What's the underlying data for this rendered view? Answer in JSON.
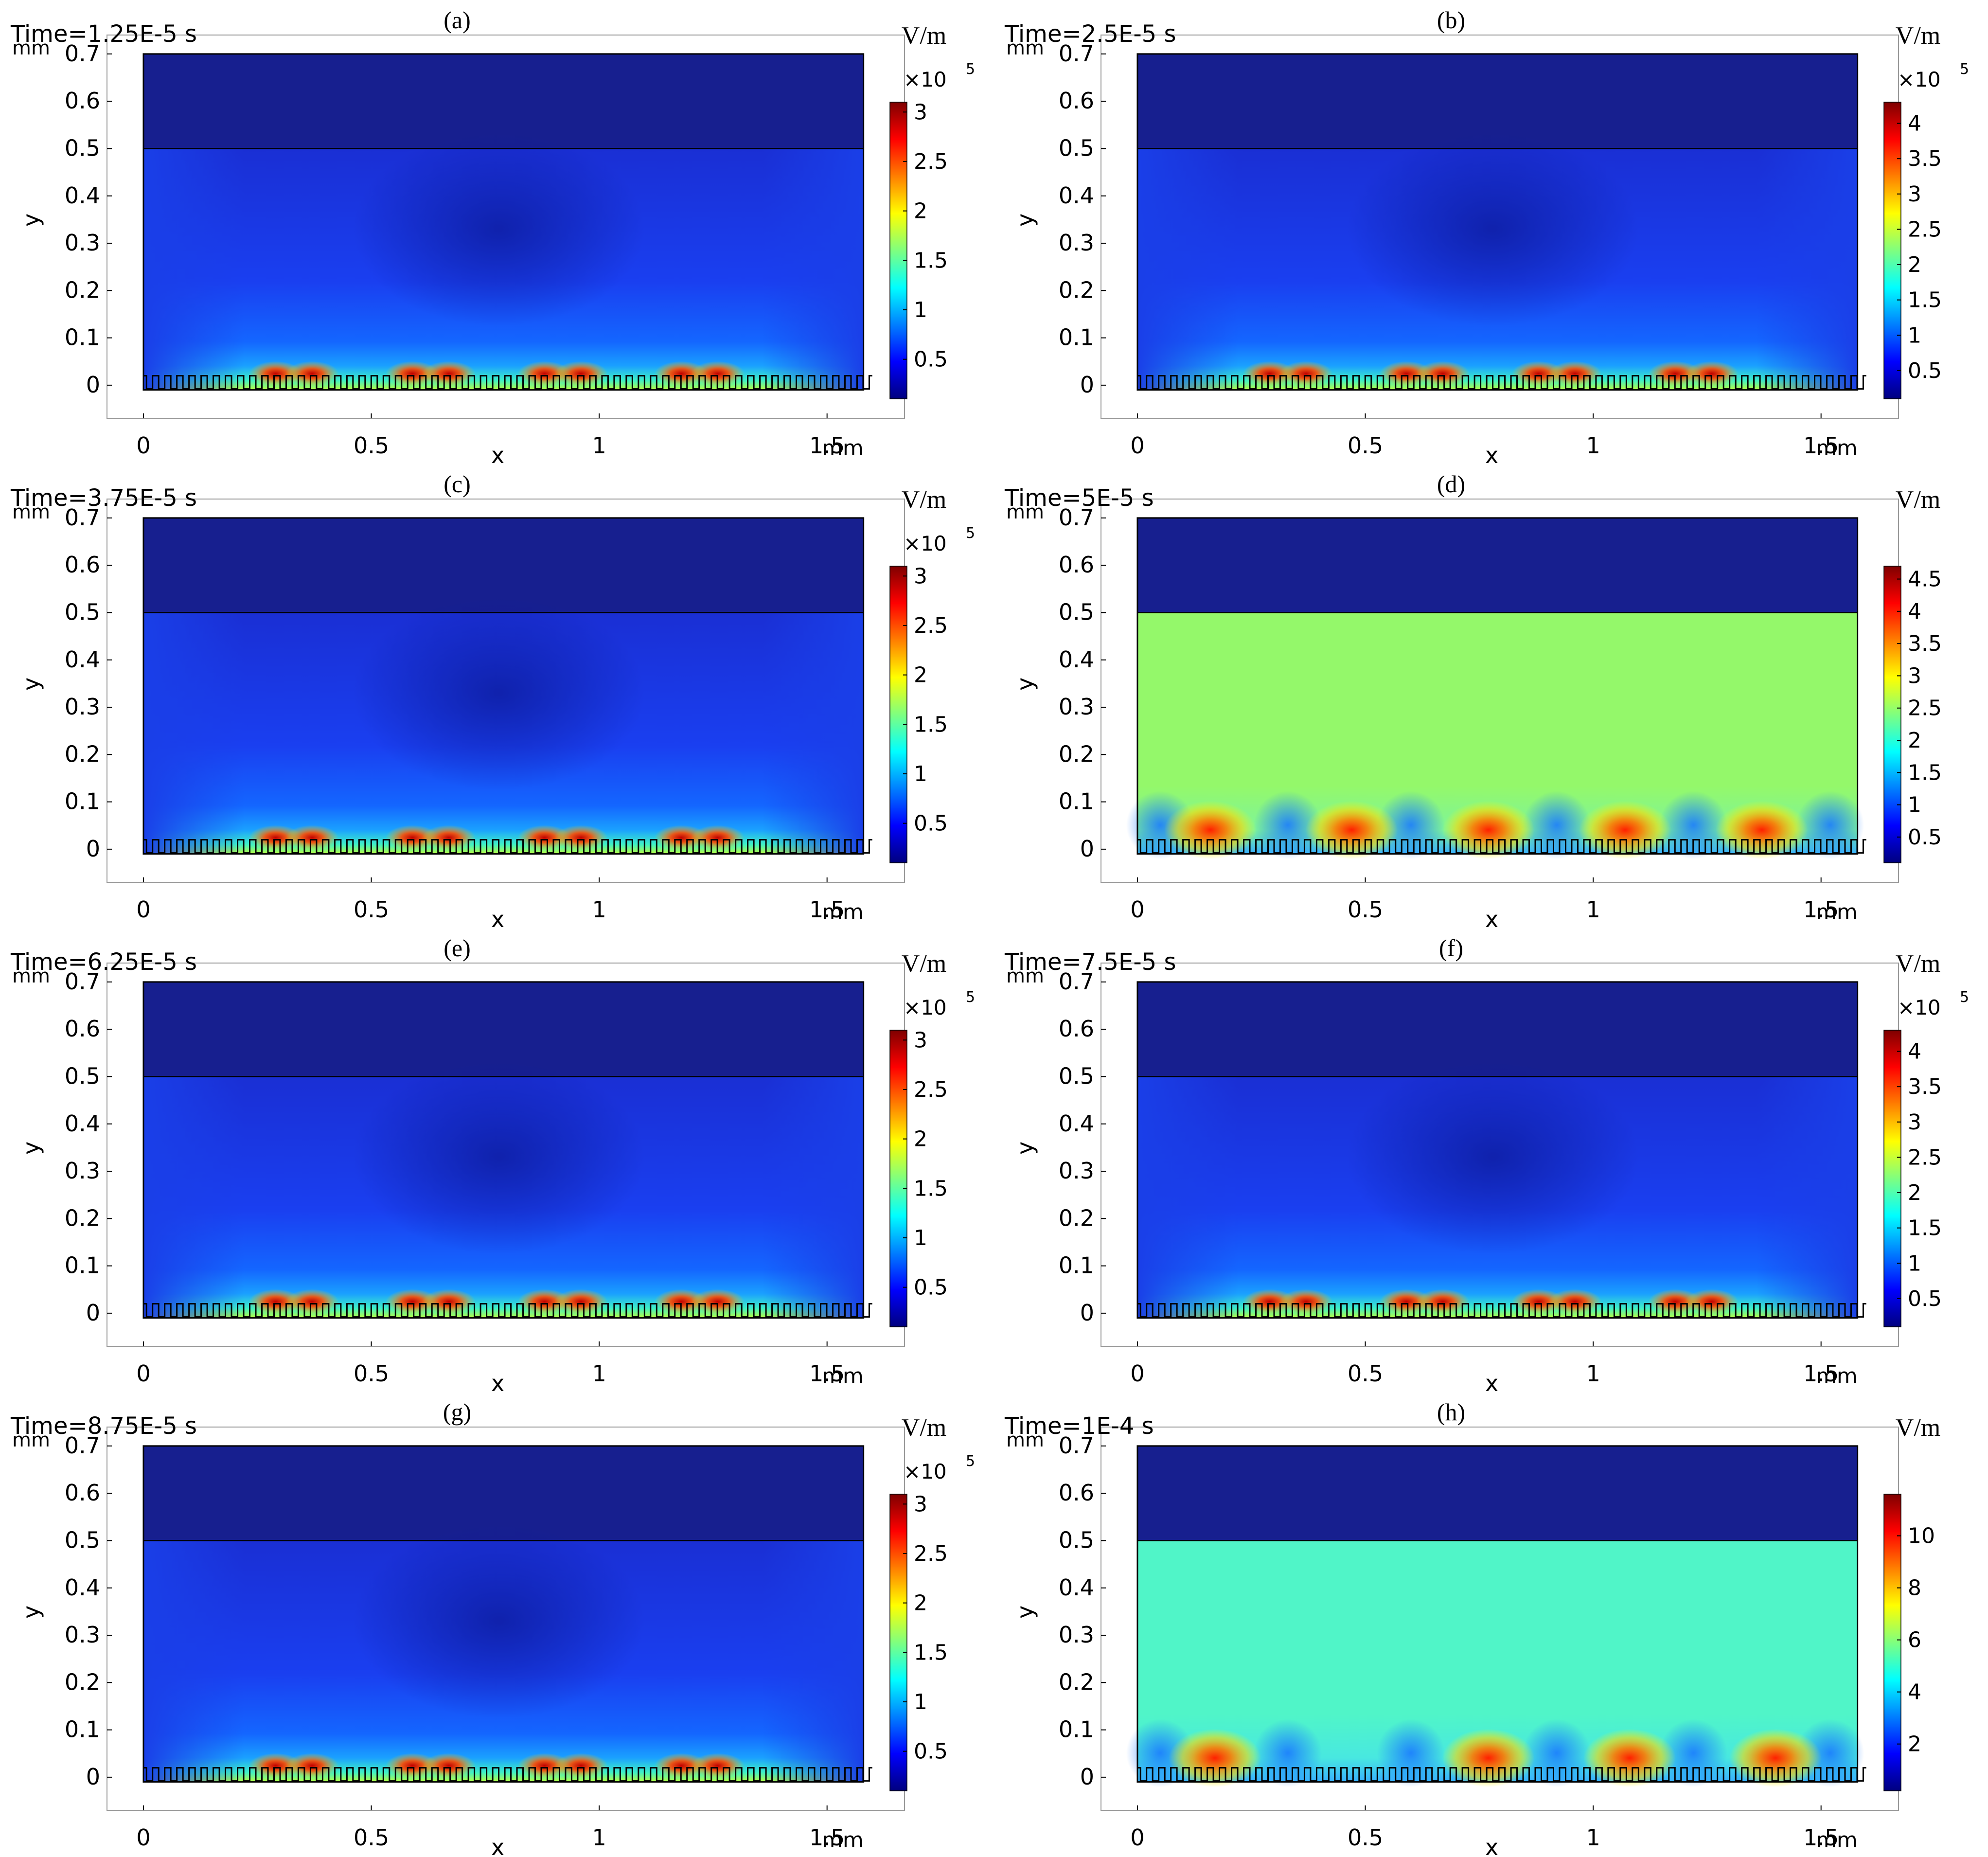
{
  "colors": {
    "jet": [
      "#00007f",
      "#0000ff",
      "#007fff",
      "#00ffff",
      "#7fff7f",
      "#ffff00",
      "#ff7f00",
      "#ff0000",
      "#7f0000"
    ],
    "frame": "#000000",
    "axis_text": "#000000"
  },
  "axes": {
    "x_label": "x",
    "y_label": "y",
    "x_unit": "mm",
    "y_unit": "mm",
    "xlim": [
      -0.08,
      1.67
    ],
    "ylim": [
      -0.07,
      0.74
    ],
    "x_ticks": [
      "0",
      "0.5",
      "1",
      "1.5"
    ],
    "y_ticks": [
      "0",
      "0.1",
      "0.2",
      "0.3",
      "0.4",
      "0.5",
      "0.6",
      "0.7"
    ],
    "domain": {
      "x": [
        0,
        1.58
      ],
      "y": [
        -0.01,
        0.7
      ]
    },
    "interface_y": 0.5
  },
  "chart_data": [
    {
      "type": "heatmap",
      "label": "(a)",
      "time": "Time=1.25E-5 s",
      "unit": "V/m",
      "multiplier": "×10",
      "exponent": "5",
      "pattern": "near_surface",
      "colorbar_ticks": [
        "0.5",
        "1",
        "1.5",
        "2",
        "2.5",
        "3"
      ],
      "colorbar_range": [
        0.1,
        3.1
      ]
    },
    {
      "type": "heatmap",
      "label": "(b)",
      "time": "Time=2.5E-5 s",
      "unit": "V/m",
      "multiplier": "×10",
      "exponent": "5",
      "pattern": "near_surface",
      "colorbar_ticks": [
        "0.5",
        "1",
        "1.5",
        "2",
        "2.5",
        "3",
        "3.5",
        "4"
      ],
      "colorbar_range": [
        0.1,
        4.3
      ]
    },
    {
      "type": "heatmap",
      "label": "(c)",
      "time": "Time=3.75E-5 s",
      "unit": "V/m",
      "multiplier": "×10",
      "exponent": "5",
      "pattern": "near_surface",
      "colorbar_ticks": [
        "0.5",
        "1",
        "1.5",
        "2",
        "2.5",
        "3"
      ],
      "colorbar_range": [
        0.1,
        3.1
      ]
    },
    {
      "type": "heatmap",
      "label": "(d)",
      "time": "Time=5E-5 s",
      "unit": "V/m",
      "multiplier": "",
      "exponent": "",
      "pattern": "uniform_green",
      "colorbar_ticks": [
        "0.5",
        "1",
        "1.5",
        "2",
        "2.5",
        "3",
        "3.5",
        "4",
        "4.5"
      ],
      "colorbar_range": [
        0.1,
        4.7
      ]
    },
    {
      "type": "heatmap",
      "label": "(e)",
      "time": "Time=6.25E-5 s",
      "unit": "V/m",
      "multiplier": "×10",
      "exponent": "5",
      "pattern": "near_surface",
      "colorbar_ticks": [
        "0.5",
        "1",
        "1.5",
        "2",
        "2.5",
        "3"
      ],
      "colorbar_range": [
        0.1,
        3.1
      ]
    },
    {
      "type": "heatmap",
      "label": "(f)",
      "time": "Time=7.5E-5 s",
      "unit": "V/m",
      "multiplier": "×10",
      "exponent": "5",
      "pattern": "near_surface",
      "colorbar_ticks": [
        "0.5",
        "1",
        "1.5",
        "2",
        "2.5",
        "3",
        "3.5",
        "4"
      ],
      "colorbar_range": [
        0.1,
        4.3
      ]
    },
    {
      "type": "heatmap",
      "label": "(g)",
      "time": "Time=8.75E-5 s",
      "unit": "V/m",
      "multiplier": "×10",
      "exponent": "5",
      "pattern": "near_surface",
      "colorbar_ticks": [
        "0.5",
        "1",
        "1.5",
        "2",
        "2.5",
        "3"
      ],
      "colorbar_range": [
        0.1,
        3.1
      ]
    },
    {
      "type": "heatmap",
      "label": "(h)",
      "time": "Time=1E-4 s",
      "unit": "V/m",
      "multiplier": "",
      "exponent": "",
      "pattern": "uniform_cyan",
      "colorbar_ticks": [
        "2",
        "4",
        "6",
        "8",
        "10"
      ],
      "colorbar_range": [
        0.2,
        11.6
      ]
    }
  ]
}
